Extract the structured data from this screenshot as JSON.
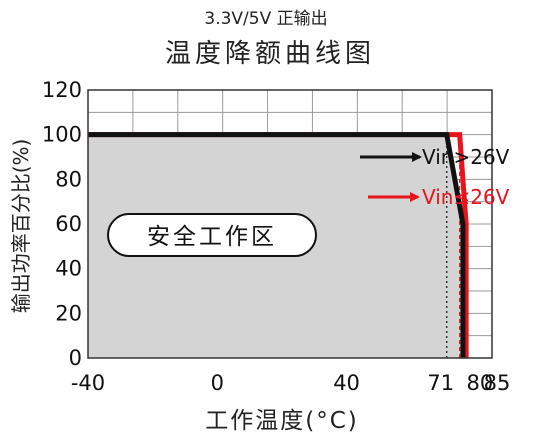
{
  "header": {
    "subtitle": "3.3V/5V 正输出",
    "title": "温度降额曲线图"
  },
  "chart_data": {
    "type": "line",
    "title": "温度降额曲线图",
    "subtitle": "3.3V/5V 正输出",
    "xlabel": "工作温度(°C)",
    "ylabel": "输出功率百分比(%)",
    "xlim": [
      -40,
      85
    ],
    "ylim": [
      0,
      120
    ],
    "x_tick_labels": [
      "-40",
      "0",
      "40",
      "71",
      "80",
      "85"
    ],
    "x_ticks": [
      -40,
      0,
      40,
      71,
      80,
      85
    ],
    "y_ticks": [
      0,
      20,
      40,
      60,
      80,
      100,
      120
    ],
    "y_tick_labels": [
      "0",
      "20",
      "40",
      "60",
      "80",
      "100",
      "120"
    ],
    "grid": true,
    "safe_area_label": "安全工作区",
    "series": [
      {
        "name": "Vin>26V",
        "color": "#111111",
        "x": [
          -40,
          71,
          76,
          76
        ],
        "y": [
          100,
          100,
          60,
          0
        ]
      },
      {
        "name": "Vin≤26V",
        "color": "#e8141b",
        "x": [
          -40,
          75,
          77,
          77
        ],
        "y": [
          100,
          100,
          60,
          0
        ]
      }
    ],
    "reference_lines": [
      {
        "x": 71,
        "color": "#111111",
        "style": "dotted"
      },
      {
        "x": 75,
        "color": "#e8141b",
        "style": "dashed"
      }
    ]
  }
}
